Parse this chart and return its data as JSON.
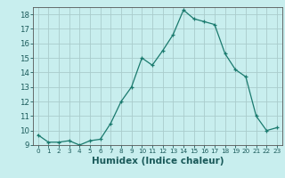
{
  "title": "",
  "xlabel": "Humidex (Indice chaleur)",
  "ylabel": "",
  "x": [
    0,
    1,
    2,
    3,
    4,
    5,
    6,
    7,
    8,
    9,
    10,
    11,
    12,
    13,
    14,
    15,
    16,
    17,
    18,
    19,
    20,
    21,
    22,
    23
  ],
  "y": [
    9.7,
    9.2,
    9.2,
    9.3,
    9.0,
    9.3,
    9.4,
    10.5,
    12.0,
    13.0,
    15.0,
    14.5,
    15.5,
    16.6,
    18.3,
    17.7,
    17.5,
    17.3,
    15.3,
    14.2,
    13.7,
    11.0,
    10.0,
    10.2
  ],
  "line_color": "#1a7a6e",
  "marker": "+",
  "marker_size": 3,
  "bg_color": "#c8eeee",
  "grid_color": "#aacccc",
  "ylim": [
    9,
    18.5
  ],
  "xlim": [
    -0.5,
    23.5
  ],
  "yticks": [
    9,
    10,
    11,
    12,
    13,
    14,
    15,
    16,
    17,
    18
  ],
  "xticks": [
    0,
    1,
    2,
    3,
    4,
    5,
    6,
    7,
    8,
    9,
    10,
    11,
    12,
    13,
    14,
    15,
    16,
    17,
    18,
    19,
    20,
    21,
    22,
    23
  ],
  "tick_color": "#1a5a5a",
  "label_fontsize": 6.5,
  "xlabel_fontsize": 7.5
}
